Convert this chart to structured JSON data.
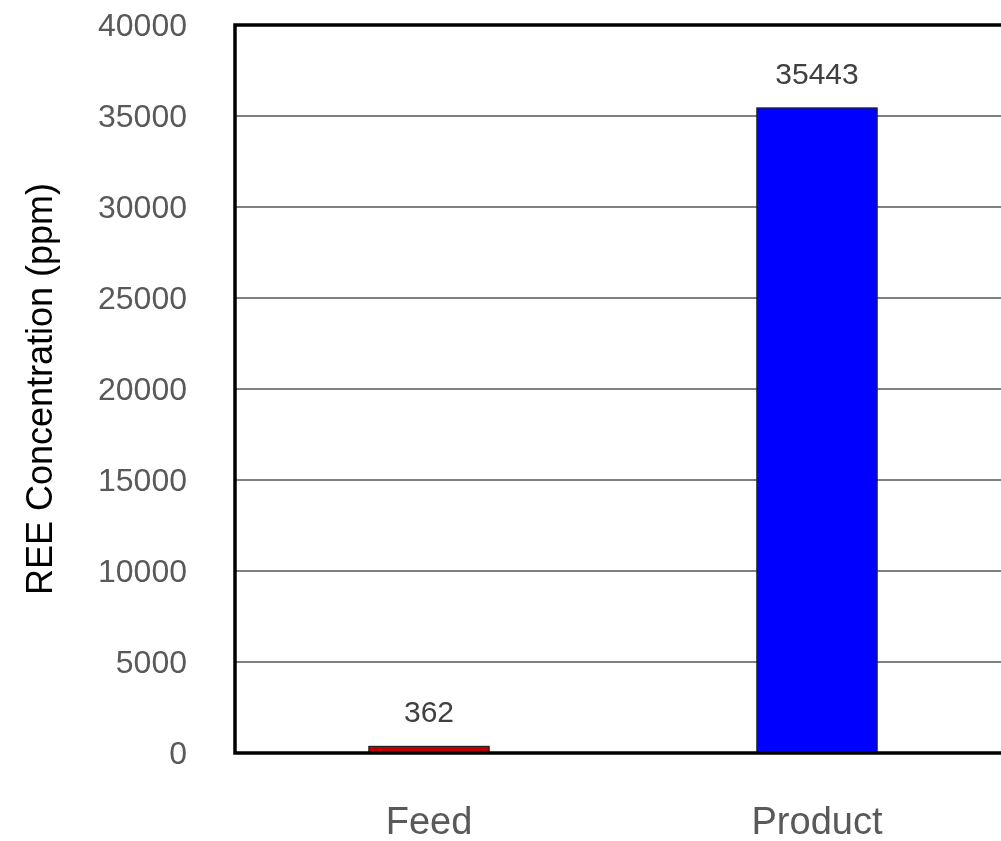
{
  "chart_data": {
    "type": "bar",
    "ylabel": "REE Concentration (ppm)",
    "categories": [
      "Feed",
      "Product"
    ],
    "values": [
      362,
      35443
    ],
    "colors": [
      "#c00000",
      "#0000ff"
    ],
    "ylim": [
      0,
      40000
    ],
    "yticks": [
      0,
      5000,
      10000,
      15000,
      20000,
      25000,
      30000,
      35000,
      40000
    ],
    "grid": "y",
    "data_labels": true
  }
}
